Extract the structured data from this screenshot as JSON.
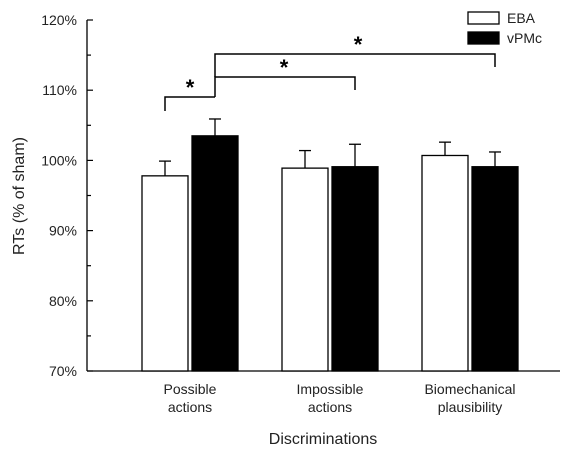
{
  "chart_data": {
    "type": "bar",
    "title": "",
    "xlabel": "Discriminations",
    "ylabel": "RTs (% of sham)",
    "ylim": [
      70,
      120
    ],
    "yticks": [
      "70%",
      "80%",
      "90%",
      "100%",
      "110%",
      "120%"
    ],
    "grid": false,
    "legend_position": "top-right",
    "categories": [
      [
        "Possible",
        "actions"
      ],
      [
        "Impossible",
        "actions"
      ],
      [
        "Biomechanical",
        "plausibility"
      ]
    ],
    "series": [
      {
        "name": "EBA",
        "color": "#ffffff",
        "values": [
          97.8,
          98.9,
          100.7
        ],
        "errors": [
          2.1,
          2.5,
          1.9
        ]
      },
      {
        "name": "vPMc",
        "color": "#000000",
        "values": [
          103.5,
          99.1,
          99.1
        ],
        "errors": [
          2.4,
          3.2,
          2.1
        ]
      }
    ],
    "annotations": [
      {
        "type": "significance",
        "label": "*",
        "from": "Possible actions EBA",
        "to": "Possible actions vPMc"
      },
      {
        "type": "significance",
        "label": "*",
        "from": "Possible actions vPMc",
        "to": "Impossible actions vPMc"
      },
      {
        "type": "significance",
        "label": "*",
        "from": "Possible actions vPMc",
        "to": "Biomechanical plausibility vPMc"
      }
    ]
  }
}
